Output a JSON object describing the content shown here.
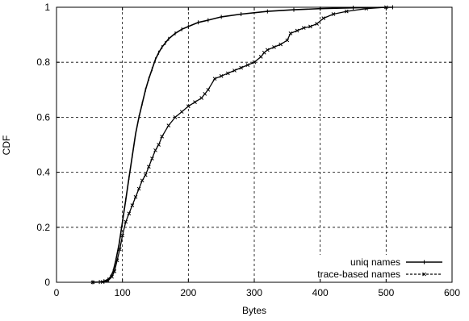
{
  "chart_data": {
    "type": "line",
    "title": "",
    "xlabel": "Bytes",
    "ylabel": "CDF",
    "xlim": [
      0,
      600
    ],
    "ylim": [
      0,
      1
    ],
    "x_ticks": [
      "0",
      "100",
      "200",
      "300",
      "400",
      "500",
      "600"
    ],
    "y_ticks": [
      "0",
      "0.2",
      "0.4",
      "0.6",
      "0.8",
      "1"
    ],
    "grid": true,
    "legend_position": "bottom-right",
    "series": [
      {
        "name": "uniq names",
        "style": "solid",
        "color": "#000000",
        "points": [
          [
            55,
            0.0
          ],
          [
            65,
            0.001
          ],
          [
            72,
            0.004
          ],
          [
            78,
            0.01
          ],
          [
            82,
            0.02
          ],
          [
            86,
            0.04
          ],
          [
            90,
            0.08
          ],
          [
            95,
            0.14
          ],
          [
            100,
            0.22
          ],
          [
            105,
            0.3
          ],
          [
            110,
            0.38
          ],
          [
            115,
            0.46
          ],
          [
            120,
            0.54
          ],
          [
            125,
            0.6
          ],
          [
            130,
            0.65
          ],
          [
            135,
            0.7
          ],
          [
            140,
            0.74
          ],
          [
            145,
            0.775
          ],
          [
            150,
            0.81
          ],
          [
            155,
            0.835
          ],
          [
            160,
            0.855
          ],
          [
            165,
            0.87
          ],
          [
            170,
            0.885
          ],
          [
            180,
            0.905
          ],
          [
            190,
            0.92
          ],
          [
            200,
            0.93
          ],
          [
            215,
            0.945
          ],
          [
            230,
            0.953
          ],
          [
            250,
            0.965
          ],
          [
            280,
            0.975
          ],
          [
            320,
            0.985
          ],
          [
            360,
            0.991
          ],
          [
            400,
            0.995
          ],
          [
            450,
            0.998
          ],
          [
            510,
            1.0
          ]
        ]
      },
      {
        "name": "trace-based names",
        "style": "dashed",
        "color": "#000000",
        "points": [
          [
            55,
            0.0
          ],
          [
            70,
            0.001
          ],
          [
            78,
            0.005
          ],
          [
            84,
            0.02
          ],
          [
            88,
            0.04
          ],
          [
            92,
            0.08
          ],
          [
            96,
            0.12
          ],
          [
            100,
            0.17
          ],
          [
            105,
            0.22
          ],
          [
            110,
            0.25
          ],
          [
            115,
            0.28
          ],
          [
            120,
            0.31
          ],
          [
            125,
            0.34
          ],
          [
            130,
            0.37
          ],
          [
            135,
            0.39
          ],
          [
            140,
            0.42
          ],
          [
            145,
            0.45
          ],
          [
            150,
            0.48
          ],
          [
            155,
            0.5
          ],
          [
            160,
            0.53
          ],
          [
            170,
            0.57
          ],
          [
            180,
            0.6
          ],
          [
            190,
            0.62
          ],
          [
            200,
            0.64
          ],
          [
            210,
            0.655
          ],
          [
            220,
            0.67
          ],
          [
            225,
            0.685
          ],
          [
            230,
            0.7
          ],
          [
            240,
            0.74
          ],
          [
            250,
            0.75
          ],
          [
            260,
            0.76
          ],
          [
            270,
            0.77
          ],
          [
            280,
            0.78
          ],
          [
            290,
            0.79
          ],
          [
            300,
            0.8
          ],
          [
            310,
            0.82
          ],
          [
            315,
            0.835
          ],
          [
            320,
            0.845
          ],
          [
            330,
            0.855
          ],
          [
            340,
            0.865
          ],
          [
            350,
            0.88
          ],
          [
            355,
            0.905
          ],
          [
            365,
            0.915
          ],
          [
            375,
            0.925
          ],
          [
            385,
            0.93
          ],
          [
            395,
            0.94
          ],
          [
            405,
            0.96
          ],
          [
            420,
            0.975
          ],
          [
            440,
            0.985
          ],
          [
            470,
            0.995
          ],
          [
            500,
            1.0
          ]
        ]
      }
    ]
  }
}
